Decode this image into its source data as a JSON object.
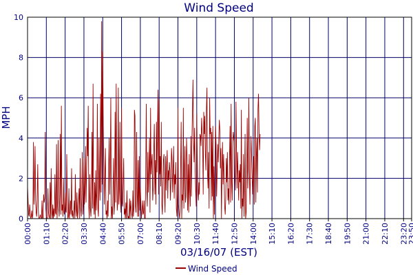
{
  "chart_data": {
    "type": "line",
    "title": "Wind Speed",
    "xlabel": "03/16/07 (EST)",
    "ylabel": "MPH",
    "ylim": [
      0,
      10
    ],
    "yticks": [
      0,
      2,
      4,
      6,
      8,
      10
    ],
    "grid": true,
    "legend_position": "bottom",
    "colors": {
      "series": "#990000",
      "grid": "#000066",
      "text": "#000080",
      "frame": "#000000"
    },
    "x_tick_labels": [
      "00:00",
      "01:10",
      "02:20",
      "03:30",
      "04:40",
      "05:50",
      "07:00",
      "08:10",
      "09:20",
      "10:30",
      "11:40",
      "12:50",
      "14:00",
      "15:10",
      "16:20",
      "17:30",
      "18:40",
      "19:50",
      "21:00",
      "22:10",
      "23:20",
      "23:50"
    ],
    "series": [
      {
        "name": "Wind Speed",
        "sample_interval_minutes": 2,
        "values": [
          1.6,
          0.9,
          0.2,
          0.1,
          0.7,
          0.3,
          0.0,
          0.1,
          0.4,
          0.0,
          0.2,
          3.8,
          0.7,
          1.6,
          3.6,
          0.9,
          0.3,
          0.1,
          1.2,
          2.7,
          0.5,
          0.0,
          0.0,
          0.1,
          0.2,
          0.0,
          0.0,
          0.9,
          0.0,
          0.0,
          1.2,
          0.8,
          1.0,
          4.3,
          0.5,
          0.1,
          0.0,
          0.0,
          1.5,
          0.3,
          0.1,
          0.0,
          1.8,
          0.0,
          2.5,
          0.3,
          0.0,
          0.7,
          0.0,
          0.5,
          0.1,
          2.2,
          0.3,
          0.2,
          3.7,
          0.0,
          0.8,
          3.9,
          0.5,
          0.1,
          1.2,
          4.2,
          0.2,
          5.6,
          0.4,
          0.7,
          0.1,
          2.0,
          0.3,
          0.2,
          1.3,
          0.4,
          0.3,
          3.2,
          0.9,
          0.0,
          0.1,
          1.5,
          0.0,
          0.3,
          0.9,
          0.2,
          2.5,
          0.1,
          0.4,
          0.0,
          0.3,
          0.9,
          0.0,
          2.2,
          0.5,
          0.1,
          1.3,
          0.0,
          0.3,
          0.9,
          1.5,
          0.0,
          3.0,
          0.5,
          0.1,
          1.1,
          3.3,
          0.2,
          0.7,
          3.0,
          0.7,
          1.3,
          3.6,
          0.8,
          2.4,
          4.5,
          3.1,
          5.6,
          0.6,
          0.0,
          2.2,
          0.5,
          0.1,
          1.1,
          4.3,
          0.5,
          6.7,
          0.8,
          0.2,
          1.8,
          0.0,
          2.4,
          0.4,
          1.3,
          5.7,
          0.5,
          0.1,
          4.0,
          1.5,
          0.9,
          6.2,
          1.3,
          9.8,
          1.7,
          8.3,
          4.6,
          2.5,
          0.7,
          2.3,
          3.5,
          0.2,
          0.4,
          0.0,
          0.9,
          0.1,
          2.6,
          4.0,
          1.2,
          2.4,
          6.0,
          0.0,
          0.6,
          0.0,
          1.3,
          3.0,
          0.2,
          0.7,
          5.3,
          0.8,
          6.7,
          2.2,
          0.4,
          0.9,
          6.5,
          0.7,
          1.4,
          4.8,
          0.9,
          0.3,
          5.5,
          0.8,
          0.6,
          1.8,
          3.0,
          0.2,
          0.5,
          0.0,
          0.8,
          0.0,
          1.4,
          0.3,
          0.0,
          0.1,
          0.0,
          1.0,
          0.0,
          0.9,
          0.5,
          0.2,
          0.0,
          1.4,
          0.1,
          0.5,
          5.4,
          5.1,
          0.6,
          0.3,
          4.3,
          1.3,
          0.1,
          2.9,
          0.1,
          3.1,
          0.4,
          1.5,
          0.7,
          0.0,
          0.4,
          0.9,
          0.2,
          0.3,
          0.9,
          0.0,
          0.0,
          1.9,
          5.7,
          1.4,
          0.6,
          3.3,
          1.3,
          2.5,
          4.0,
          0.3,
          5.5,
          2.2,
          2.8,
          3.2,
          0.9,
          1.5,
          3.4,
          4.7,
          1.2,
          2.9,
          0.7,
          4.8,
          2.3,
          4.6,
          6.4,
          1.2,
          5.9,
          2.2,
          3.1,
          1.6,
          4.8,
          0.7,
          0.2,
          1.6,
          2.9,
          3.2,
          1.2,
          0.3,
          3.1,
          1.4,
          2.7,
          3.4,
          1.0,
          2.4,
          1.9,
          2.8,
          2.4,
          0.9,
          1.9,
          3.5,
          2.9,
          1.3,
          2.3,
          3.6,
          1.0,
          2.2,
          1.7,
          2.8,
          0.5,
          0.1,
          1.2,
          5.5,
          0.7,
          0.3,
          0.0,
          0.5,
          2.6,
          4.8,
          0.0,
          1.2,
          0.9,
          5.5,
          0.5,
          2.4,
          3.6,
          0.8,
          1.1,
          4.0,
          3.0,
          0.4,
          2.7,
          0.3,
          3.2,
          1.4,
          0.6,
          4.1,
          1.1,
          3.9,
          5.3,
          6.9,
          3.9,
          2.8,
          4.5,
          2.4,
          1.4,
          0.6,
          5.2,
          3.0,
          1.3,
          0.9,
          1.8,
          1.2,
          4.2,
          4.1,
          3.6,
          5.0,
          4.3,
          3.9,
          1.2,
          5.3,
          4.2,
          5.1,
          3.2,
          2.4,
          5.4,
          6.5,
          2.3,
          1.5,
          3.3,
          0.5,
          6.0,
          4.2,
          4.5,
          0.9,
          4.3,
          1.1,
          4.6,
          0.0,
          2.6,
          0.2,
          3.1,
          4.6,
          3.7,
          1.1,
          2.4,
          3.7,
          2.8,
          4.0,
          4.9,
          4.4,
          2.5,
          3.5,
          0.0,
          2.3,
          3.8,
          1.7,
          3.2,
          2.0,
          0.6,
          0.2,
          1.0,
          3.0,
          1.8,
          3.3,
          0.9,
          1.5,
          0.7,
          3.1,
          4.6,
          0.8,
          5.7,
          1.8,
          0.9,
          3.5,
          4.3,
          4.0,
          3.8,
          2.1,
          1.4,
          5.8,
          3.5,
          1.5,
          3.3,
          2.2,
          0.9,
          2.4,
          1.8,
          2.7,
          0.5,
          5.4,
          0.0,
          1.0,
          0.6,
          3.2,
          0.1,
          1.8,
          4.2,
          0.0,
          0.3,
          2.1,
          5.0,
          1.5,
          2.6,
          6.0,
          2.4,
          0.7,
          2.4,
          4.1,
          3.2,
          2.1,
          1.2,
          2.4,
          3.1,
          0.7,
          4.6,
          5.0,
          0.8,
          3.2,
          4.0,
          1.3,
          5.5,
          6.2,
          4.3,
          3.4,
          4.2
        ]
      }
    ]
  }
}
